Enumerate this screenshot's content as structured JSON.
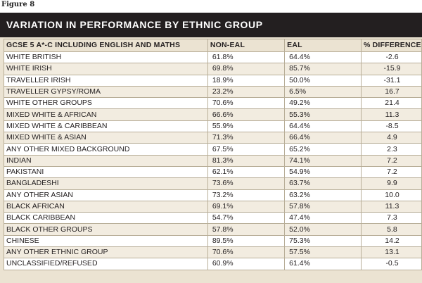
{
  "figure_label": "Figure 8",
  "title": "VARIATION IN PERFORMANCE BY ETHNIC GROUP",
  "colors": {
    "title_bar": "#231f20",
    "panel": "#ebe3d2",
    "row_alt": "#f2ece0",
    "row": "#ffffff",
    "border": "#b8ae98"
  },
  "table": {
    "columns": [
      "GCSE 5 A*-C INCLUDING ENGLISH AND MATHS",
      "NON-EAL",
      "EAL",
      "% DIFFERENCE"
    ],
    "rows": [
      [
        "WHITE BRITISH",
        "61.8%",
        "64.4%",
        "-2.6"
      ],
      [
        "WHITE IRISH",
        "69.8%",
        "85.7%",
        "-15.9"
      ],
      [
        "TRAVELLER IRISH",
        "18.9%",
        "50.0%",
        "-31.1"
      ],
      [
        "TRAVELLER GYPSY/ROMA",
        "23.2%",
        "6.5%",
        "16.7"
      ],
      [
        "WHITE OTHER GROUPS",
        "70.6%",
        "49.2%",
        "21.4"
      ],
      [
        "MIXED WHITE & AFRICAN",
        "66.6%",
        "55.3%",
        "11.3"
      ],
      [
        "MIXED WHITE & CARIBBEAN",
        "55.9%",
        "64.4%",
        "-8.5"
      ],
      [
        "MIXED WHITE & ASIAN",
        "71.3%",
        "66.4%",
        "4.9"
      ],
      [
        "ANY OTHER MIXED BACKGROUND",
        "67.5%",
        "65.2%",
        "2.3"
      ],
      [
        "INDIAN",
        "81.3%",
        "74.1%",
        "7.2"
      ],
      [
        "PAKISTANI",
        "62.1%",
        "54.9%",
        "7.2"
      ],
      [
        "BANGLADESHI",
        "73.6%",
        "63.7%",
        "9.9"
      ],
      [
        "ANY OTHER ASIAN",
        "73.2%",
        "63.2%",
        "10.0"
      ],
      [
        "BLACK AFRICAN",
        "69.1%",
        "57.8%",
        "11.3"
      ],
      [
        "BLACK CARIBBEAN",
        "54.7%",
        "47.4%",
        "7.3"
      ],
      [
        "BLACK OTHER GROUPS",
        "57.8%",
        "52.0%",
        "5.8"
      ],
      [
        "CHINESE",
        "89.5%",
        "75.3%",
        "14.2"
      ],
      [
        "ANY OTHER ETHNIC GROUP",
        "70.6%",
        "57.5%",
        "13.1"
      ],
      [
        "UNCLASSIFIED/REFUSED",
        "60.9%",
        "61.4%",
        "-0.5"
      ]
    ]
  }
}
